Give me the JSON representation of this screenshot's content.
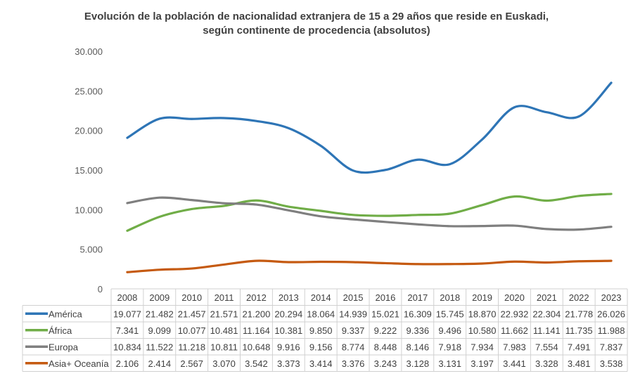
{
  "chart_data": {
    "type": "line",
    "title_line1": "Evolución de la población de nacionalidad extranjera de 15 a 29 años que reside en Euskadi,",
    "title_line2": "según continente de procedencia (absolutos)",
    "categories": [
      "2008",
      "2009",
      "2010",
      "2011",
      "2012",
      "2013",
      "2014",
      "2015",
      "2016",
      "2017",
      "2018",
      "2019",
      "2020",
      "2021",
      "2022",
      "2023"
    ],
    "ylim": [
      0,
      30000
    ],
    "yticks": [
      0,
      5000,
      10000,
      15000,
      20000,
      25000,
      30000
    ],
    "ytick_labels": [
      "0",
      "5.000",
      "10.000",
      "15.000",
      "20.000",
      "25.000",
      "30.000"
    ],
    "grid": false,
    "legend": "data-table",
    "series": [
      {
        "name": "América",
        "color": "#2e75b6",
        "values": [
          19077,
          21482,
          21457,
          21571,
          21200,
          20294,
          18064,
          14939,
          15021,
          16309,
          15745,
          18870,
          22932,
          22304,
          21778,
          26026
        ],
        "labels": [
          "19.077",
          "21.482",
          "21.457",
          "21.571",
          "21.200",
          "20.294",
          "18.064",
          "14.939",
          "15.021",
          "16.309",
          "15.745",
          "18.870",
          "22.932",
          "22.304",
          "21.778",
          "26.026"
        ]
      },
      {
        "name": "África",
        "color": "#70ad47",
        "values": [
          7341,
          9099,
          10077,
          10481,
          11164,
          10381,
          9850,
          9337,
          9222,
          9336,
          9496,
          10580,
          11662,
          11141,
          11735,
          11988
        ],
        "labels": [
          "7.341",
          "9.099",
          "10.077",
          "10.481",
          "11.164",
          "10.381",
          "9.850",
          "9.337",
          "9.222",
          "9.336",
          "9.496",
          "10.580",
          "11.662",
          "11.141",
          "11.735",
          "11.988"
        ]
      },
      {
        "name": "Europa",
        "color": "#7f7f7f",
        "values": [
          10834,
          11522,
          11218,
          10811,
          10648,
          9916,
          9156,
          8774,
          8448,
          8146,
          7918,
          7934,
          7983,
          7554,
          7491,
          7837
        ],
        "labels": [
          "10.834",
          "11.522",
          "11.218",
          "10.811",
          "10.648",
          "9.916",
          "9.156",
          "8.774",
          "8.448",
          "8.146",
          "7.918",
          "7.934",
          "7.983",
          "7.554",
          "7.491",
          "7.837"
        ]
      },
      {
        "name": "Asia+ Oceanía",
        "color": "#c55a11",
        "values": [
          2106,
          2414,
          2567,
          3070,
          3542,
          3373,
          3414,
          3376,
          3243,
          3128,
          3131,
          3197,
          3441,
          3328,
          3481,
          3538
        ],
        "labels": [
          "2.106",
          "2.414",
          "2.567",
          "3.070",
          "3.542",
          "3.373",
          "3.414",
          "3.376",
          "3.243",
          "3.128",
          "3.131",
          "3.197",
          "3.441",
          "3.328",
          "3.481",
          "3.538"
        ]
      }
    ]
  }
}
